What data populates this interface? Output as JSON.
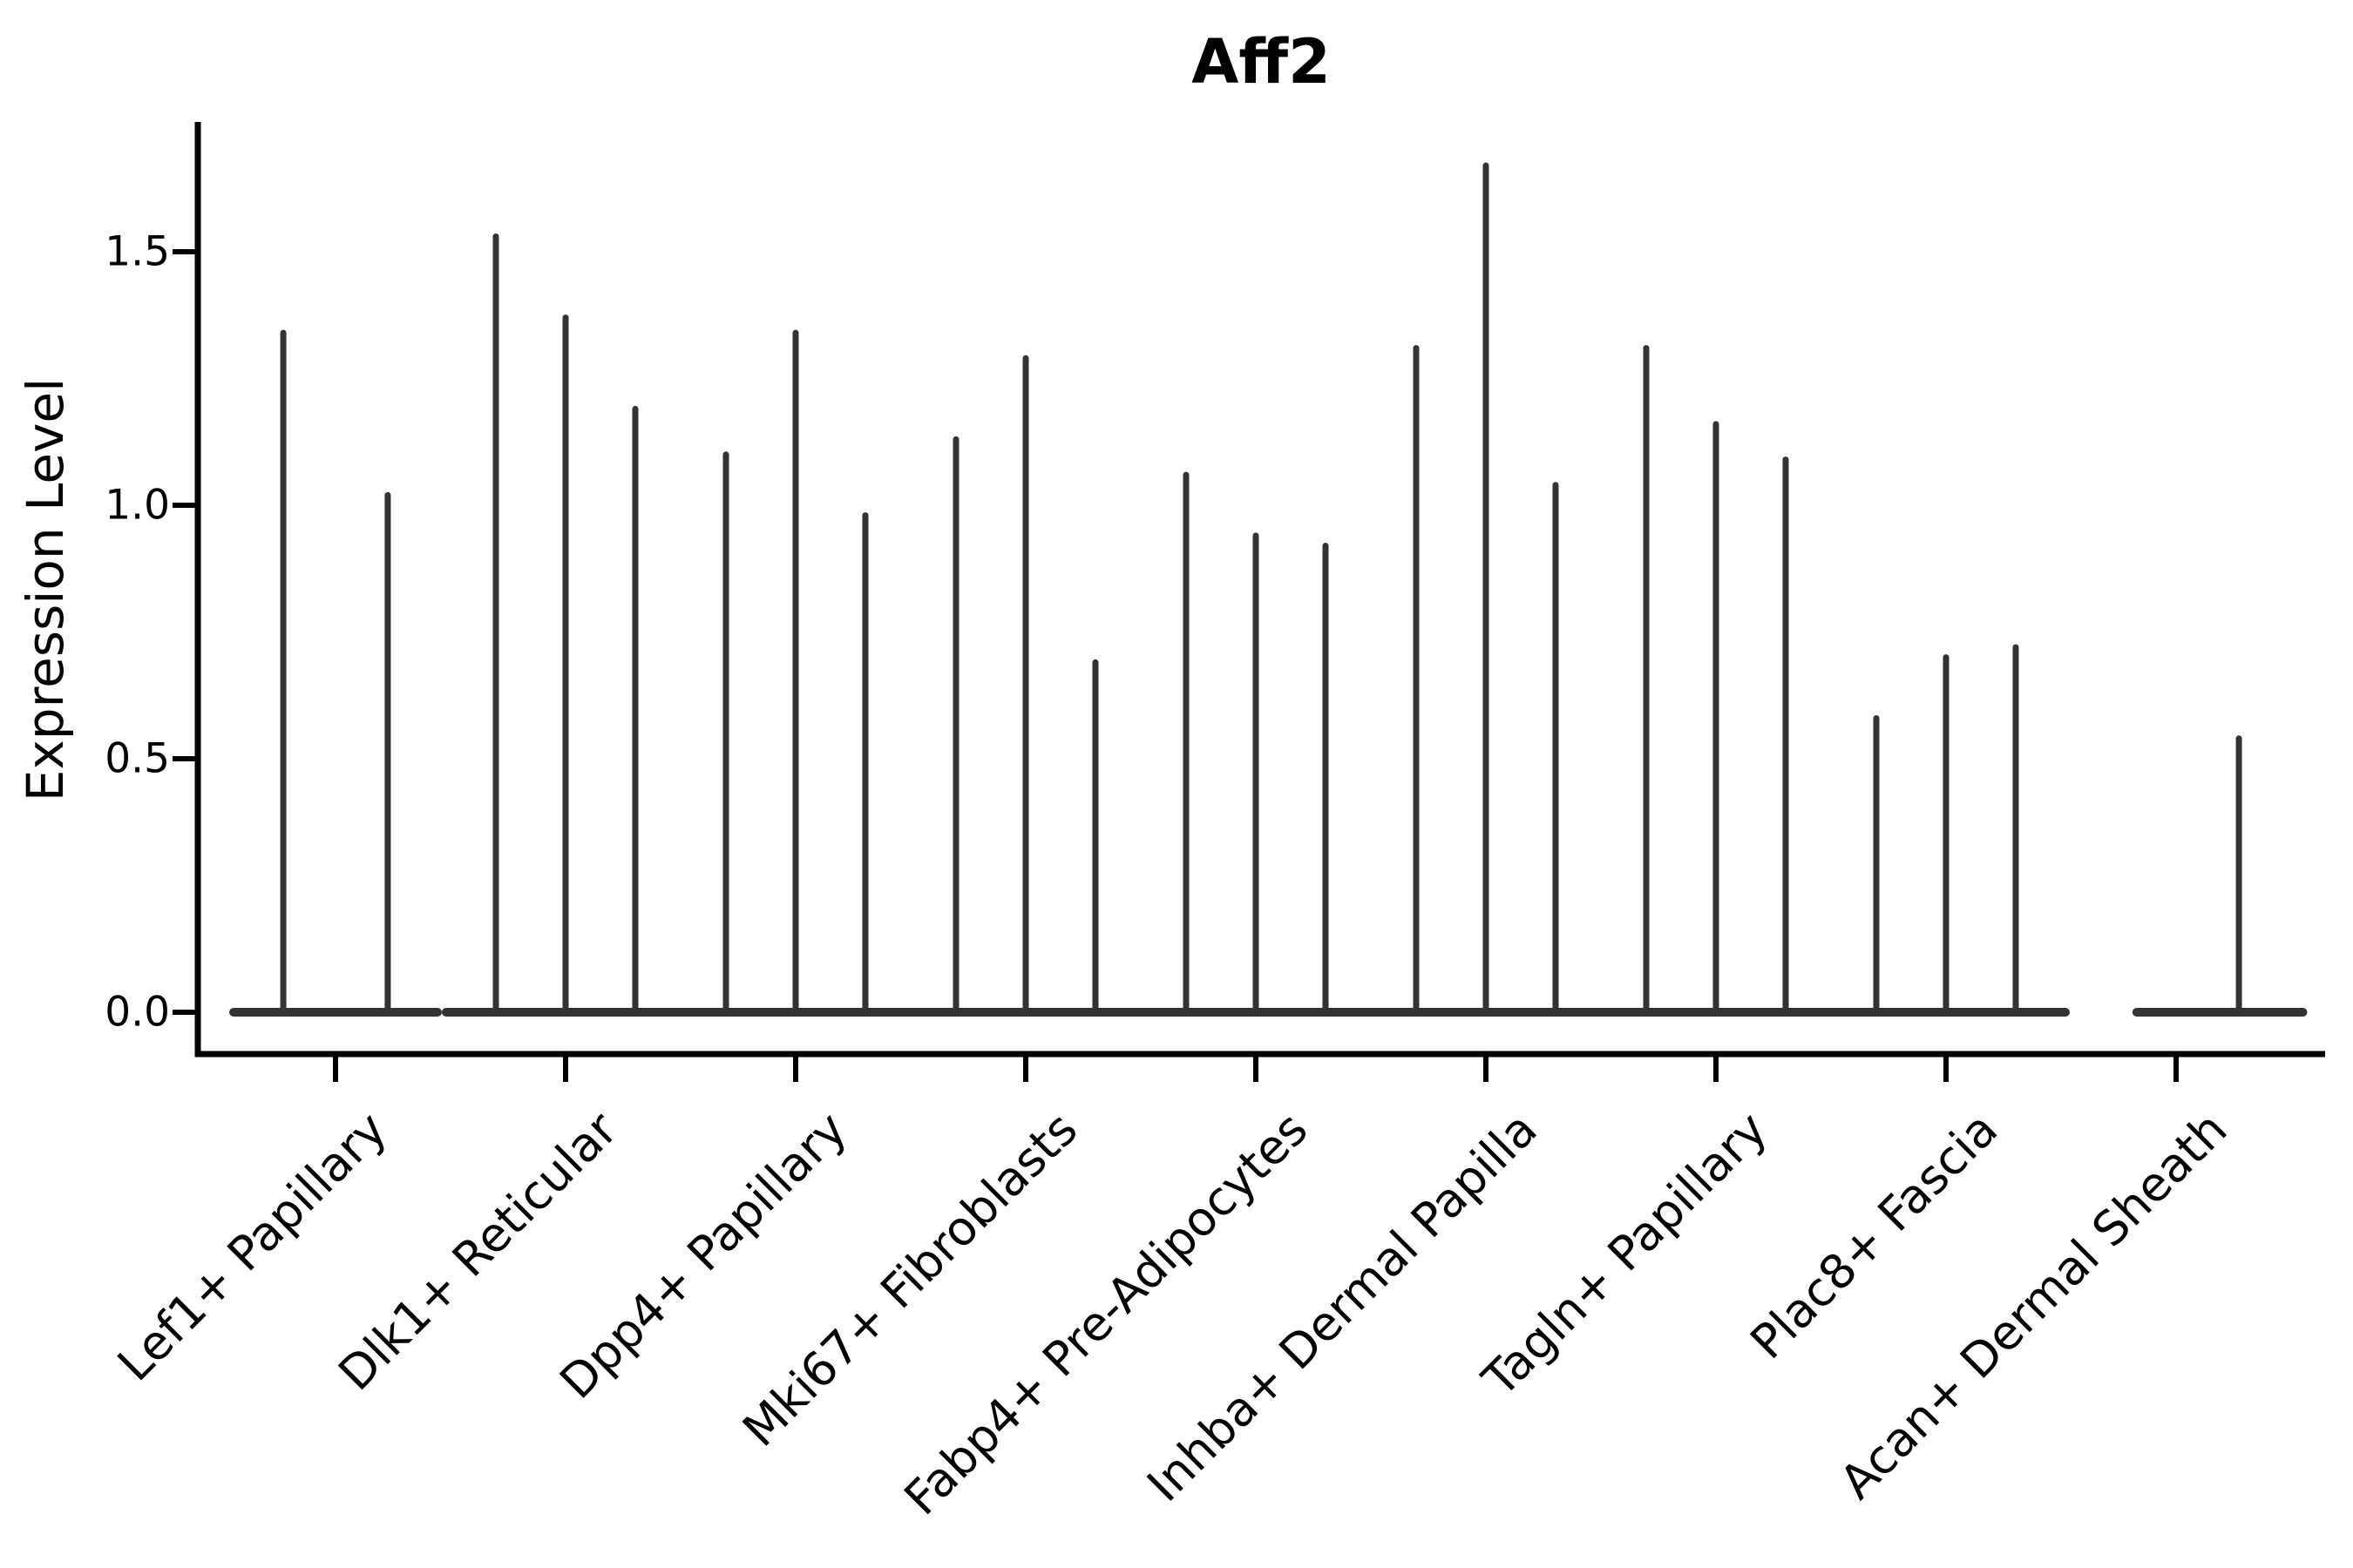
{
  "chart_data": {
    "type": "violin",
    "title": "Aff2",
    "ylabel": "Expression Level",
    "xlabel": "",
    "ytick_labels": [
      "0.0",
      "0.5",
      "1.0",
      "1.5"
    ],
    "ytick_values": [
      0.0,
      0.5,
      1.0,
      1.5
    ],
    "ylim": [
      -0.08,
      1.76
    ],
    "grid": false,
    "legend": false,
    "colors": {
      "violin": "#333333",
      "axis": "#000000",
      "text": "#000000",
      "background": "#ffffff"
    },
    "categories": [
      {
        "label": "Lef1+ Papillary",
        "base_extent": [
          -0.462,
          0.462
        ],
        "violins": [
          {
            "dx": -0.227,
            "max": 1.34
          },
          {
            "dx": 0.227,
            "max": 1.02
          }
        ]
      },
      {
        "label": "Dlk1+ Reticular",
        "base_extent": [
          -0.538,
          0.538
        ],
        "violins": [
          {
            "dx": -0.303,
            "max": 1.53
          },
          {
            "dx": 0,
            "max": 1.37
          },
          {
            "dx": 0.303,
            "max": 1.19
          }
        ]
      },
      {
        "label": "Dpp4+ Papillary",
        "base_extent": [
          -0.538,
          0.538
        ],
        "violins": [
          {
            "dx": -0.303,
            "max": 1.1
          },
          {
            "dx": 0,
            "max": 1.34
          },
          {
            "dx": 0.303,
            "max": 0.98
          }
        ]
      },
      {
        "label": "Mki67+ Fibroblasts",
        "base_extent": [
          -0.538,
          0.538
        ],
        "violins": [
          {
            "dx": -0.303,
            "max": 1.13
          },
          {
            "dx": 0,
            "max": 1.29
          },
          {
            "dx": 0.303,
            "max": 0.69
          }
        ]
      },
      {
        "label": "Fabp4+ Pre-Adipocytes",
        "base_extent": [
          -0.538,
          0.538
        ],
        "violins": [
          {
            "dx": -0.303,
            "max": 1.06
          },
          {
            "dx": 0,
            "max": 0.94
          },
          {
            "dx": 0.303,
            "max": 0.92
          }
        ]
      },
      {
        "label": "Inhba+ Dermal Papilla",
        "base_extent": [
          -0.538,
          0.538
        ],
        "violins": [
          {
            "dx": -0.303,
            "max": 1.31
          },
          {
            "dx": 0,
            "max": 1.67
          },
          {
            "dx": 0.303,
            "max": 1.04
          }
        ]
      },
      {
        "label": "Tagln+ Papillary",
        "base_extent": [
          -0.538,
          0.538
        ],
        "violins": [
          {
            "dx": -0.303,
            "max": 1.31
          },
          {
            "dx": 0,
            "max": 1.16
          },
          {
            "dx": 0.303,
            "max": 1.09
          }
        ]
      },
      {
        "label": "Plac8+ Fascia",
        "base_extent": [
          -0.538,
          0.538
        ],
        "violins": [
          {
            "dx": -0.303,
            "max": 0.58
          },
          {
            "dx": 0,
            "max": 0.7
          },
          {
            "dx": 0.303,
            "max": 0.72
          }
        ]
      },
      {
        "label": "Acan+ Dermal Sheath",
        "base_extent": [
          -0.19,
          0.57
        ],
        "violins": [
          {
            "dx": 0.273,
            "max": 0.54
          }
        ]
      }
    ]
  }
}
